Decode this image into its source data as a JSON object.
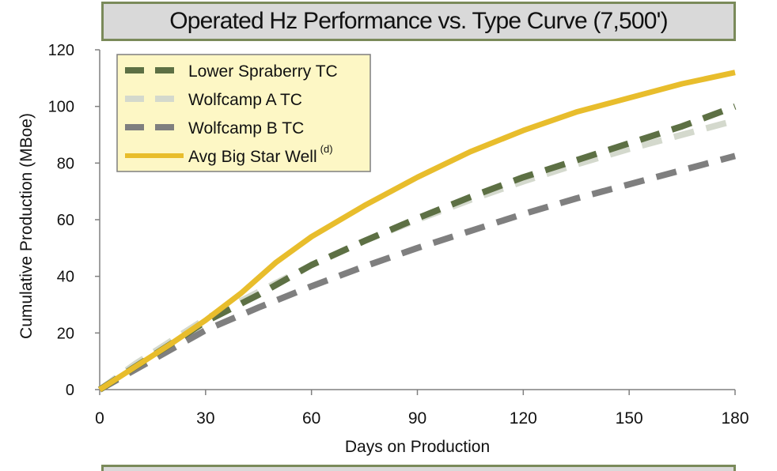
{
  "chart_data": {
    "type": "line",
    "title": "Operated Hz Performance vs. Type Curve (7,500')",
    "xlabel": "Days on Production",
    "ylabel": "Cumulative Production (MBoe)",
    "xlim": [
      0,
      180
    ],
    "ylim": [
      0,
      120
    ],
    "xticks": [
      0,
      30,
      60,
      90,
      120,
      150,
      180
    ],
    "yticks": [
      0,
      20,
      40,
      60,
      80,
      100,
      120
    ],
    "grid": false,
    "legend_position": "top-left",
    "series": [
      {
        "name": "Lower Spraberry TC",
        "color": "#5d7044",
        "style": "dashed",
        "x": [
          0,
          10,
          20,
          30,
          45,
          60,
          75,
          90,
          105,
          120,
          135,
          150,
          165,
          180
        ],
        "y": [
          0,
          8,
          16,
          24,
          33.5,
          44,
          52.5,
          60.5,
          68,
          75,
          81,
          87,
          93,
          100
        ]
      },
      {
        "name": "Wolfcamp A TC",
        "color": "#d4d9cd",
        "style": "dashed",
        "x": [
          0,
          10,
          20,
          30,
          45,
          60,
          75,
          90,
          105,
          120,
          135,
          150,
          165,
          180
        ],
        "y": [
          0,
          9,
          17,
          25,
          34.5,
          44,
          52.5,
          60,
          67,
          73.5,
          79.5,
          85,
          90,
          95
        ]
      },
      {
        "name": "Wolfcamp B TC",
        "color": "#7f7f7f",
        "style": "dashed",
        "x": [
          0,
          10,
          20,
          30,
          45,
          60,
          75,
          90,
          105,
          120,
          135,
          150,
          165,
          180
        ],
        "y": [
          0,
          7,
          14,
          21,
          29,
          36.5,
          43.5,
          50,
          56,
          62,
          67.5,
          72.5,
          77.5,
          82.5
        ]
      },
      {
        "name": "Avg Big Star Well",
        "superscript": "(d)",
        "color": "#e8bd2c",
        "style": "solid",
        "x": [
          0,
          10,
          20,
          30,
          40,
          50,
          60,
          75,
          90,
          105,
          120,
          135,
          150,
          165,
          180
        ],
        "y": [
          0,
          8,
          16,
          24.5,
          34,
          45,
          54,
          65,
          75,
          84,
          91.5,
          98,
          103,
          108,
          112
        ]
      }
    ]
  }
}
